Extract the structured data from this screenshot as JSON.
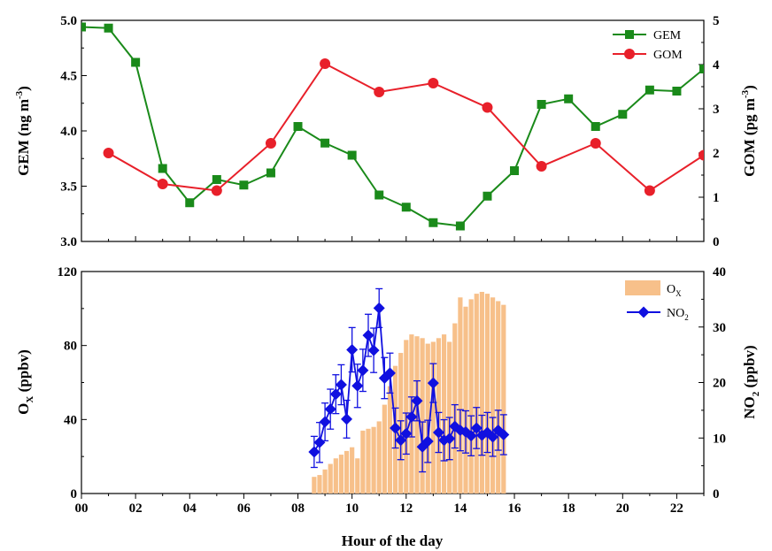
{
  "colors": {
    "gem": "#1a8a1a",
    "gom": "#e8202a",
    "ox": "#f7c08a",
    "no2": "#1010e0"
  },
  "chart_data": [
    {
      "type": "line",
      "xlabel": "",
      "ylabel": "GEM (ng m-3)",
      "ylabel_parts": [
        "GEM (ng m",
        "-3",
        ")"
      ],
      "y2label": "GOM (pg m-3)",
      "y2label_parts": [
        "GOM (pg m",
        "-3",
        ")"
      ],
      "xlim": [
        0,
        23
      ],
      "ylim": [
        3.0,
        5.0
      ],
      "y2lim": [
        0,
        5
      ],
      "yticks": [
        "3.0",
        "3.5",
        "4.0",
        "4.5",
        "5.0"
      ],
      "y2ticks": [
        "0",
        "1",
        "2",
        "3",
        "4",
        "5"
      ],
      "legend": {
        "position": "top-right",
        "items": [
          "GEM",
          "GOM"
        ]
      },
      "series": [
        {
          "name": "GEM",
          "axis": "left",
          "marker": "square",
          "x": [
            0,
            1,
            2,
            3,
            4,
            5,
            6,
            7,
            8,
            9,
            10,
            11,
            12,
            13,
            14,
            15,
            16,
            17,
            18,
            19,
            20,
            21,
            22,
            23
          ],
          "y": [
            4.94,
            4.93,
            4.62,
            3.66,
            3.35,
            3.56,
            3.51,
            3.62,
            4.04,
            3.89,
            3.78,
            3.42,
            3.31,
            3.17,
            3.14,
            3.41,
            3.64,
            4.24,
            4.29,
            4.04,
            4.15,
            4.37,
            4.36,
            4.56
          ]
        },
        {
          "name": "GOM",
          "axis": "right",
          "marker": "circle",
          "x": [
            1,
            3,
            5,
            7,
            9,
            11,
            13,
            15,
            17,
            19,
            21,
            23
          ],
          "y": [
            2.0,
            1.3,
            1.15,
            2.22,
            4.02,
            3.38,
            3.58,
            3.03,
            1.7,
            2.22,
            1.15,
            1.95
          ]
        }
      ]
    },
    {
      "type": "bar",
      "xlabel": "Hour of the day",
      "ylabel": "OX (ppbv)",
      "ylabel_parts": [
        "O",
        "X",
        " (ppbv)"
      ],
      "y2label": "NO2 (ppbv)",
      "y2label_parts": [
        "NO",
        "2",
        " (ppbv)"
      ],
      "xlim": [
        0,
        23
      ],
      "xticks": [
        "00",
        "02",
        "04",
        "06",
        "08",
        "10",
        "12",
        "14",
        "16",
        "18",
        "20",
        "22"
      ],
      "ylim": [
        0,
        120
      ],
      "y2lim": [
        0,
        40
      ],
      "yticks": [
        "0",
        "40",
        "80",
        "120"
      ],
      "y2ticks": [
        "0",
        "10",
        "20",
        "30",
        "40"
      ],
      "legend": {
        "position": "top-right",
        "items": [
          {
            "base": "O",
            "sub": "X"
          },
          {
            "base": "NO",
            "sub": "2"
          }
        ]
      },
      "series": [
        {
          "name": "OX",
          "axis": "left",
          "kind": "bar",
          "x": [
            8.6,
            8.8,
            9.0,
            9.2,
            9.4,
            9.6,
            9.8,
            10.0,
            10.2,
            10.4,
            10.6,
            10.8,
            11.0,
            11.2,
            11.4,
            11.6,
            11.8,
            12.0,
            12.2,
            12.4,
            12.6,
            12.8,
            13.0,
            13.2,
            13.4,
            13.6,
            13.8,
            14.0,
            14.2,
            14.4,
            14.6,
            14.8,
            15.0,
            15.2,
            15.4,
            15.6
          ],
          "y": [
            9,
            10,
            13,
            16,
            19,
            21,
            23,
            25,
            19,
            34,
            35,
            36,
            39,
            48,
            58,
            69,
            76,
            83,
            86,
            85,
            84,
            81,
            82,
            84,
            86,
            82,
            92,
            106,
            101,
            105,
            108,
            109,
            108,
            106,
            104,
            102
          ]
        },
        {
          "name": "NO2",
          "axis": "right",
          "kind": "line",
          "marker": "diamond",
          "x": [
            8.6,
            8.8,
            9.0,
            9.2,
            9.4,
            9.6,
            9.8,
            10.0,
            10.2,
            10.4,
            10.6,
            10.8,
            11.0,
            11.2,
            11.4,
            11.6,
            11.8,
            12.0,
            12.2,
            12.4,
            12.6,
            12.8,
            13.0,
            13.2,
            13.4,
            13.6,
            13.8,
            14.0,
            14.2,
            14.4,
            14.6,
            14.8,
            15.0,
            15.2,
            15.4,
            15.6
          ],
          "y": [
            7.5,
            9.2,
            12.9,
            15.2,
            17.9,
            19.6,
            13.4,
            25.9,
            19.4,
            22.2,
            28.5,
            25.8,
            33.4,
            20.8,
            21.7,
            11.8,
            9.6,
            10.8,
            13.8,
            16.7,
            8.4,
            9.4,
            19.9,
            11.0,
            9.6,
            9.9,
            12.1,
            11.4,
            11.1,
            10.4,
            11.8,
            10.5,
            11.0,
            10.2,
            11.4,
            10.6
          ],
          "err": [
            2.8,
            3.6,
            3.4,
            3.6,
            3.5,
            3.6,
            3.4,
            4.0,
            3.9,
            3.8,
            3.8,
            4.0,
            3.5,
            3.7,
            3.6,
            3.6,
            3.5,
            3.7,
            3.6,
            3.6,
            4.5,
            3.8,
            3.5,
            3.6,
            3.7,
            3.8,
            3.9,
            3.7,
            3.8,
            3.6,
            3.7,
            3.6,
            3.6,
            3.5,
            3.6,
            3.6
          ]
        }
      ]
    }
  ]
}
